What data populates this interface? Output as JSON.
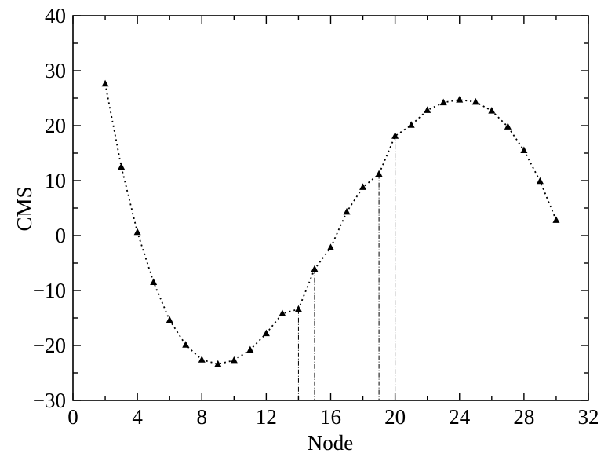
{
  "chart_data": {
    "type": "line",
    "xlabel": "Node",
    "ylabel": "CMS",
    "xlim": [
      0,
      32
    ],
    "ylim": [
      -30,
      40
    ],
    "x_major_ticks": [
      0,
      4,
      8,
      12,
      16,
      20,
      24,
      28,
      32
    ],
    "y_major_ticks": [
      -30,
      -20,
      -10,
      0,
      10,
      20,
      30,
      40
    ],
    "x_tick_labels": [
      "0",
      "4",
      "8",
      "12",
      "16",
      "20",
      "24",
      "28",
      "32"
    ],
    "y_tick_labels": [
      "−30",
      "−20",
      "−10",
      "0",
      "10",
      "20",
      "30",
      "40"
    ],
    "grid": false,
    "marker": "triangle",
    "series": [
      {
        "x": [
          2,
          3,
          4,
          5,
          6,
          7,
          8,
          9,
          10,
          11,
          12,
          13,
          14,
          15,
          16,
          17,
          18,
          19,
          20,
          21,
          22,
          23,
          24,
          25,
          26,
          27,
          28,
          29,
          30
        ],
        "y": [
          27.6,
          12.5,
          0.6,
          -8.5,
          -15.4,
          -19.9,
          -22.6,
          -23.4,
          -22.7,
          -20.8,
          -17.8,
          -14.2,
          -13.4,
          -6.1,
          -2.2,
          4.3,
          8.8,
          11.2,
          18.1,
          20.1,
          22.8,
          24.2,
          24.7,
          24.3,
          22.7,
          19.8,
          15.5,
          9.9,
          2.8
        ]
      }
    ],
    "drop_lines_x": [
      14,
      15,
      19,
      20
    ]
  }
}
